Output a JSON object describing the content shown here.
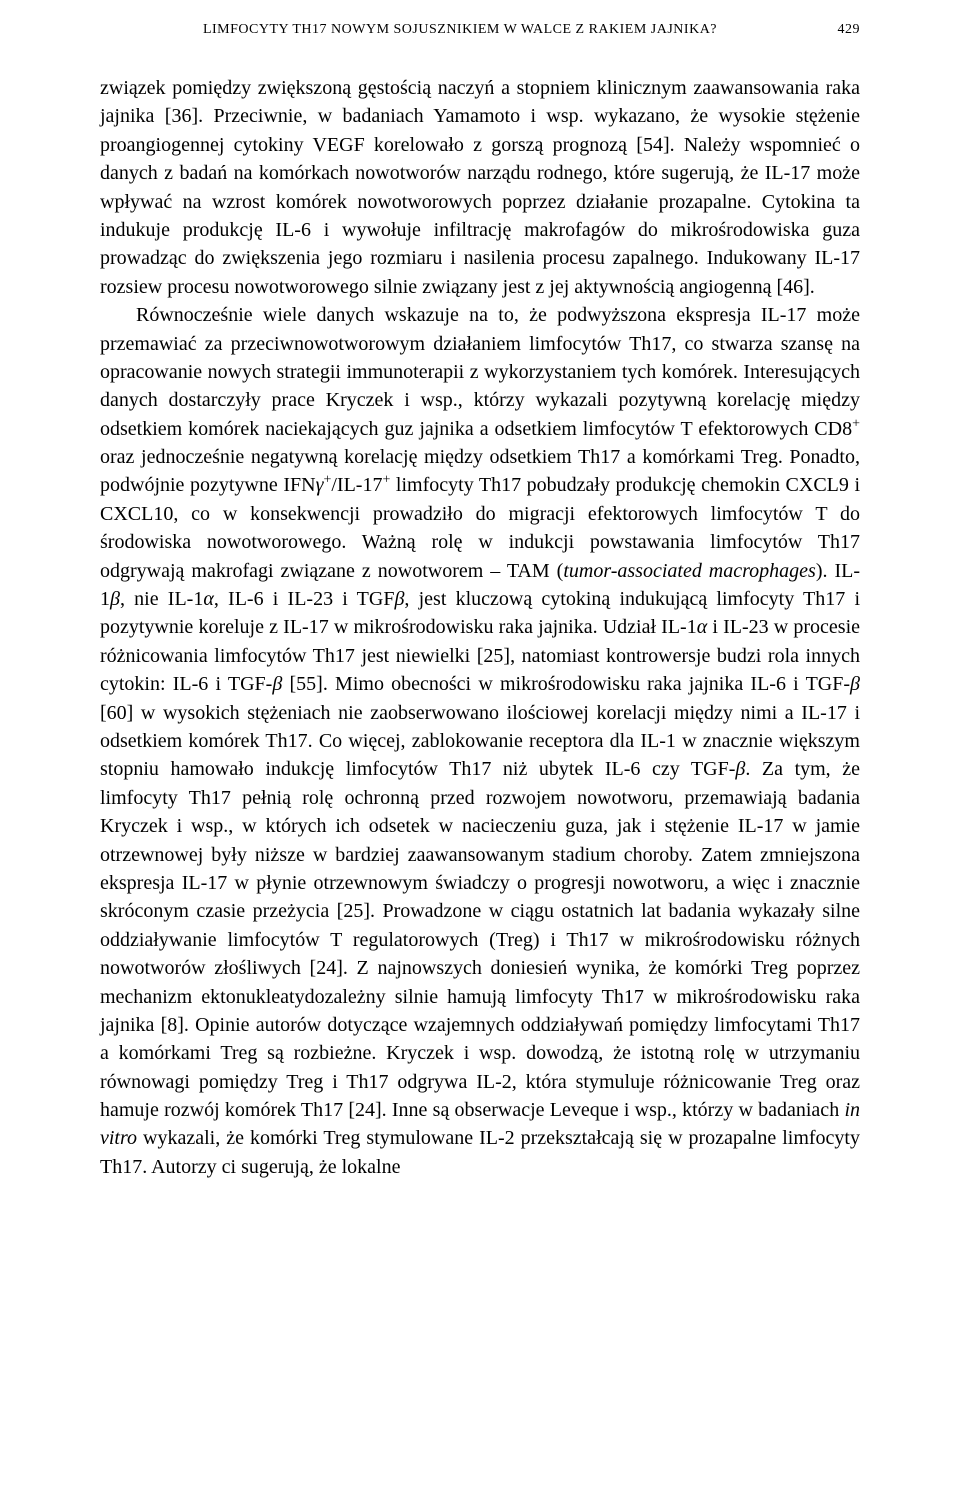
{
  "header": {
    "running_title": "LIMFOCYTY TH17 NOWYM SOJUSZNIKIEM W WALCE Z RAKIEM JAJNIKA?",
    "page_number": "429"
  },
  "paragraphs": {
    "p1": "związek pomiędzy zwiększoną gęstością naczyń a stopniem klinicznym zaawansowania raka jajnika [36]. Przeciwnie, w badaniach Yamamoto i wsp. wykazano, że wysokie stężenie proangiogennej cytokiny VEGF korelowało z gorszą prognozą [54]. Należy wspomnieć o danych z badań na komórkach nowotworów narządu rodnego, które sugerują, że IL-17 może wpływać na wzrost komórek nowotworowych poprzez działanie prozapalne. Cytokina ta indukuje produkcję IL-6 i wywołuje infiltrację makrofagów do mikrośrodowiska guza prowadząc do zwiększenia jego rozmiaru i nasilenia procesu zapalnego. Indukowany IL-17 rozsiew procesu nowotworowego silnie związany jest z jej aktywnością angiogenną [46].",
    "p2_a": "Równocześnie wiele danych wskazuje na to, że podwyższona ekspresja IL-17 może przemawiać za przeciwnowotworowym działaniem limfocytów Th17, co stwarza szansę na opracowanie nowych strategii immunoterapii z wykorzystaniem tych komórek. Interesujących danych dostarczyły prace Kryczek i wsp., którzy wykazali pozytywną korelację między odsetkiem komórek naciekających guz jajnika a odsetkiem limfocytów T efektorowych CD8",
    "p2_b": " oraz jednocześnie negatywną korelację między odsetkiem Th17 a komórkami Treg. Ponadto, podwójnie pozytywne IFN",
    "p2_c": "/IL-17",
    "p2_d": " limfocyty Th17 pobudzały produkcję chemokin CXCL9 i CXCL10, co w konsekwencji prowadziło do migracji efektorowych limfocytów T do środowiska nowotworowego. Ważną rolę w indukcji powstawania limfocytów Th17 odgrywają makrofagi związane z nowotworem – TAM (",
    "p2_e_it": "tumor-associated macrophages",
    "p2_f": "). IL-1",
    "p2_g": ", nie IL-1",
    "p2_h": ", IL-6 i IL-23 i TGF",
    "p2_i": ", jest kluczową cytokiną indukującą limfocyty Th17 i pozytywnie koreluje z IL-17 w mikrośrodowisku raka jajnika. Udział IL-1",
    "p2_j": " i IL-23 w procesie różnicowania limfocytów Th17 jest niewielki [25], natomiast kontrowersje budzi rola innych cytokin: IL-6 i TGF-",
    "p2_k": " [55]. Mimo obecności w mikrośrodowisku raka jajnika IL-6 i TGF-",
    "p2_l": " [60] w wysokich stężeniach nie zaobserwowano ilościowej korelacji między nimi a IL-17 i odsetkiem komórek Th17. Co więcej, zablokowanie receptora dla IL-1 w znacznie większym stopniu hamowało indukcję limfocytów Th17 niż ubytek IL-6 czy TGF-",
    "p2_m": ". Za tym, że limfocyty Th17 pełnią rolę ochronną przed rozwojem nowotworu, przemawiają badania Kryczek i wsp., w których ich odsetek w nacieczeniu guza, jak i stężenie IL-17 w jamie otrzewnowej były niższe w bardziej zaawansowanym stadium choroby. Zatem zmniejszona ekspresja IL-17 w płynie otrzewnowym świadczy o progresji nowotworu, a więc i znacznie skróconym czasie przeżycia [25]. Prowadzone w ciągu ostatnich lat badania wykazały silne oddziaływanie limfocytów T regulatorowych (Treg) i Th17 w mikrośrodowisku różnych nowotworów złośliwych [24]. Z najnowszych doniesień wynika, że komórki Treg poprzez mechanizm ektonukleatydozależny silnie hamują limfocyty Th17 w mikrośrodowisku raka jajnika [8]. Opinie autorów dotyczące wzajemnych oddziaływań pomiędzy limfocytami Th17 a komórkami Treg są rozbieżne. Kryczek i wsp. dowodzą, że istotną rolę w utrzymaniu równowagi pomiędzy Treg i Th17 odgrywa IL-2, która stymuluje różnicowanie Treg oraz hamuje rozwój komórek Th17 [24]. Inne są obserwacje Leveque i wsp., którzy w badaniach ",
    "p2_n_it": "in vitro",
    "p2_o": " wykazali, że komórki Treg stymulowane IL-2 przekształcają się w prozapalne limfocyty Th17. Autorzy ci sugerują, że lokalne",
    "greek_beta": "β",
    "greek_alpha": "α",
    "greek_gamma": "γ",
    "plus": "+"
  }
}
